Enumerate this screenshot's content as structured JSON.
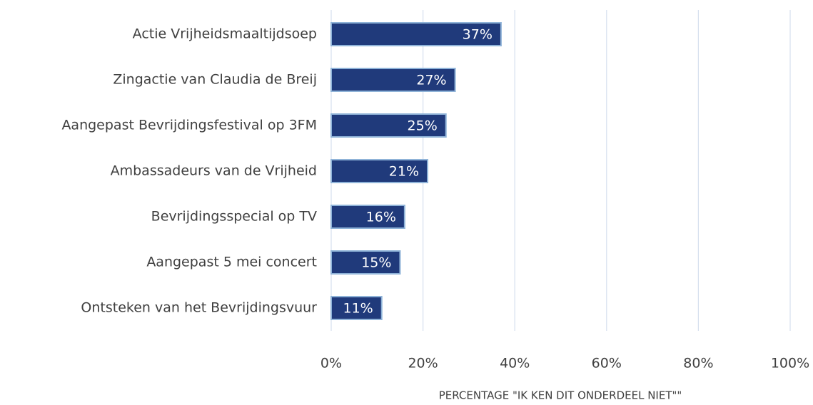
{
  "chart_data": {
    "type": "hbar",
    "categories": [
      "Actie Vrijheidsmaaltijdsoep",
      "Zingactie van Claudia de Breij",
      "Aangepast Bevrijdingsfestival op 3FM",
      "Ambassadeurs van de Vrijheid",
      "Bevrijdingsspecial op TV",
      "Aangepast 5 mei concert",
      "Ontsteken van het Bevrijdingsvuur"
    ],
    "values": [
      37,
      27,
      25,
      21,
      16,
      15,
      11
    ],
    "value_labels": [
      "37%",
      "27%",
      "25%",
      "21%",
      "16%",
      "15%",
      "11%"
    ],
    "color": "#203a7b",
    "xlim": [
      0,
      100
    ],
    "xticks": [
      {
        "value": 0,
        "label": "0%"
      },
      {
        "value": 20,
        "label": "20%"
      },
      {
        "value": 40,
        "label": "40%"
      },
      {
        "value": 60,
        "label": "60%"
      },
      {
        "value": 80,
        "label": "80%"
      },
      {
        "value": 100,
        "label": "100%"
      }
    ],
    "xlabel": "PERCENTAGE \"IK KEN DIT ONDERDEEL NIET\"\"",
    "grid": true
  }
}
